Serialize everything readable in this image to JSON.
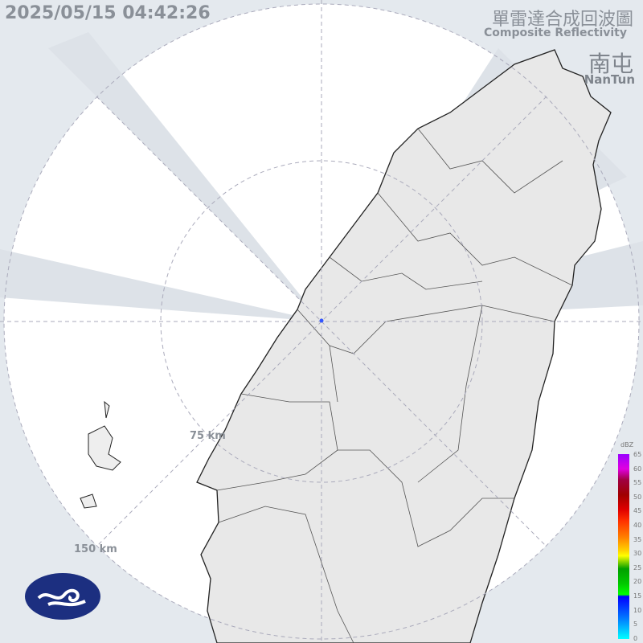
{
  "timestamp": "2025/05/15 04:42:26",
  "title_zh": "單雷達合成回波圖",
  "title_en": "Composite Reflectivity",
  "station_zh": "南屯",
  "station_en": "NanTun",
  "range_rings": [
    "75 km",
    "150 km"
  ],
  "colorbar": {
    "unit": "dBZ",
    "ticks": [
      "65",
      "60",
      "55",
      "50",
      "45",
      "40",
      "35",
      "30",
      "25",
      "20",
      "15",
      "10",
      "5",
      "0"
    ]
  },
  "colors": {
    "background": "#e4e9ee",
    "radar_coverage": "#ffffff",
    "land": "#e8e8e8",
    "border": "#222222",
    "blocked": "#d6dbe0"
  },
  "logo": "cwa-logo"
}
